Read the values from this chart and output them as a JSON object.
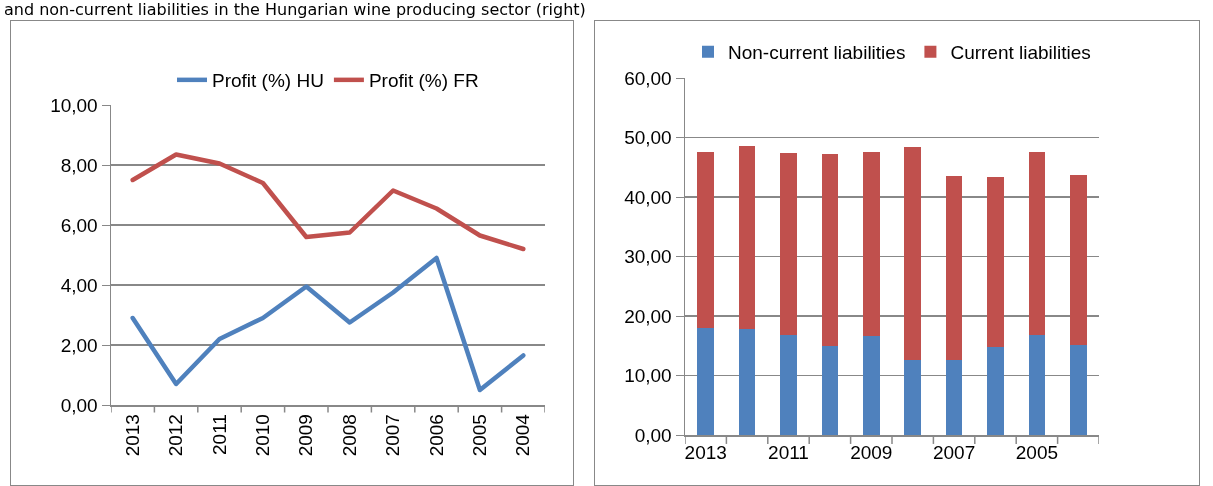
{
  "chart_data": [
    {
      "type": "line",
      "title": "and non-current liabilities in the Hungarian wine producing sector (right)",
      "categories": [
        "2013",
        "2012",
        "2011",
        "2010",
        "2009",
        "2008",
        "2007",
        "2006",
        "2005",
        "2004"
      ],
      "series": [
        {
          "name": "Profit (%) HU",
          "color": "#4f81bd",
          "values": [
            2.9,
            0.7,
            2.2,
            2.9,
            3.95,
            2.75,
            3.75,
            4.9,
            0.5,
            1.65
          ]
        },
        {
          "name": "Profit (%) FR",
          "color": "#c0504d",
          "values": [
            7.5,
            8.35,
            8.05,
            7.4,
            5.6,
            5.75,
            7.15,
            6.55,
            5.65,
            5.2
          ]
        }
      ],
      "ylim": [
        0,
        10
      ],
      "yticks": [
        {
          "value": 0,
          "label": "0,00"
        },
        {
          "value": 2,
          "label": "2,00"
        },
        {
          "value": 4,
          "label": "4,00"
        },
        {
          "value": 6,
          "label": "6,00"
        },
        {
          "value": 8,
          "label": "8,00"
        },
        {
          "value": 10,
          "label": "10,00"
        }
      ],
      "grid": "y",
      "legend": "top",
      "line_style": "solid"
    },
    {
      "type": "bar",
      "stacked": true,
      "categories": [
        "2013",
        null,
        "2011",
        null,
        "2009",
        null,
        "2007",
        null,
        "2005",
        null
      ],
      "series": [
        {
          "name": "Non-current liabilities",
          "color": "#4f81bd",
          "values": [
            18,
            17.8,
            16.8,
            15,
            16.6,
            12.6,
            12.6,
            14.8,
            16.8,
            15.2
          ]
        },
        {
          "name": "Current liabilities",
          "color": "#c0504d",
          "values": [
            29.5,
            30.8,
            30.6,
            32.3,
            30.9,
            35.8,
            30.9,
            28.6,
            30.7,
            28.5
          ]
        }
      ],
      "ylim": [
        0,
        60
      ],
      "yticks": [
        {
          "value": 0,
          "label": "0,00"
        },
        {
          "value": 10,
          "label": "10,00"
        },
        {
          "value": 20,
          "label": "20,00"
        },
        {
          "value": 30,
          "label": "30,00"
        },
        {
          "value": 40,
          "label": "40,00"
        },
        {
          "value": 50,
          "label": "50,00"
        },
        {
          "value": 60,
          "label": "60,00"
        }
      ],
      "grid": "y",
      "legend": "top"
    }
  ]
}
